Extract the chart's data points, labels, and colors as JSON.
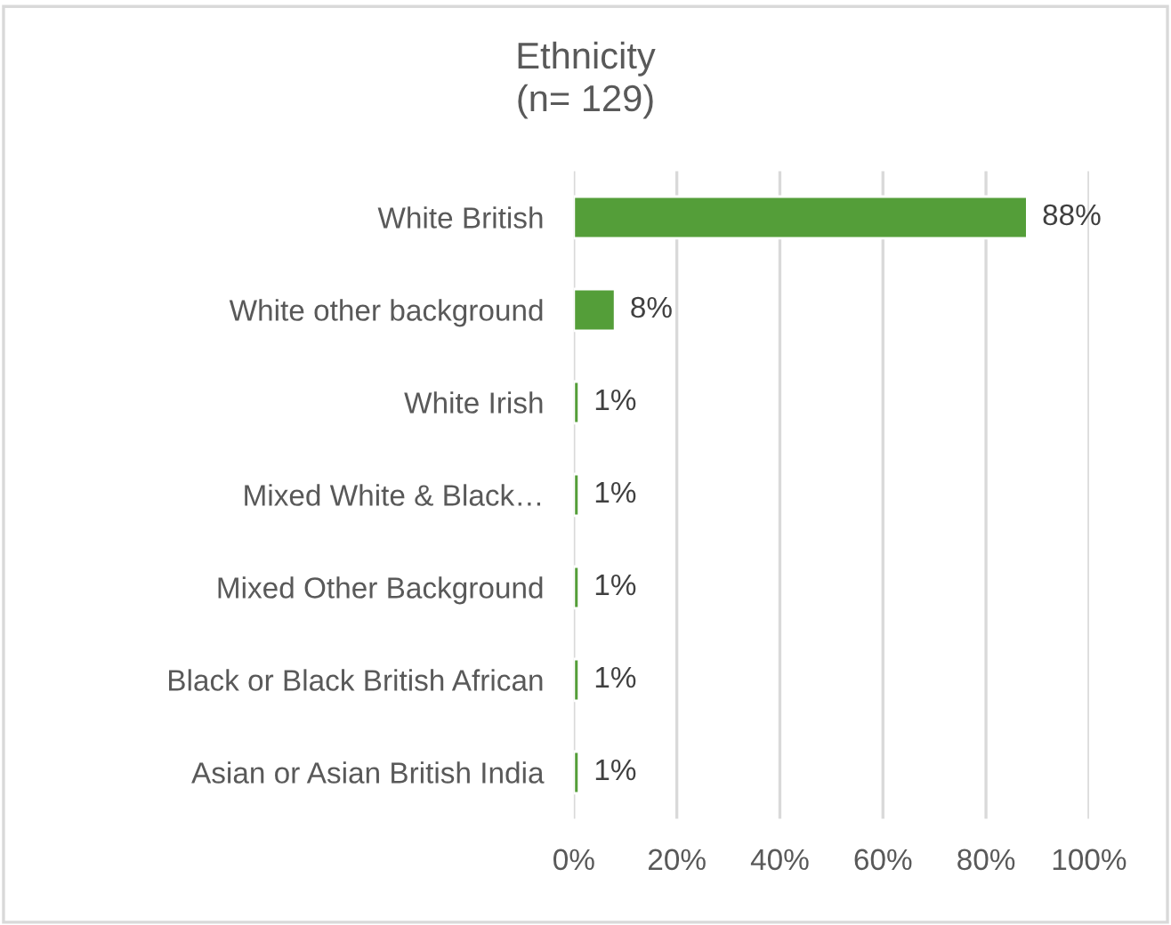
{
  "chart_data": {
    "type": "bar",
    "orientation": "horizontal",
    "title": "Ethnicity\n(n= 129)",
    "categories": [
      "White British",
      "White other background",
      "White Irish",
      "Mixed White & Black…",
      "Mixed Other Background",
      "Black or Black British African",
      "Asian or Asian British India"
    ],
    "values": [
      88,
      8,
      1,
      1,
      1,
      1,
      1
    ],
    "color": "#549e39",
    "value_labels": [
      "88%",
      "8%",
      "1%",
      "1%",
      "1%",
      "1%",
      "1%"
    ],
    "xlim": [
      0,
      100
    ],
    "xticks": [
      {
        "value": 0,
        "label": "0%"
      },
      {
        "value": 20,
        "label": "20%"
      },
      {
        "value": 40,
        "label": "40%"
      },
      {
        "value": 60,
        "label": "60%"
      },
      {
        "value": 80,
        "label": "80%"
      },
      {
        "value": 100,
        "label": "100%"
      }
    ],
    "grid": "x",
    "legend": false
  }
}
